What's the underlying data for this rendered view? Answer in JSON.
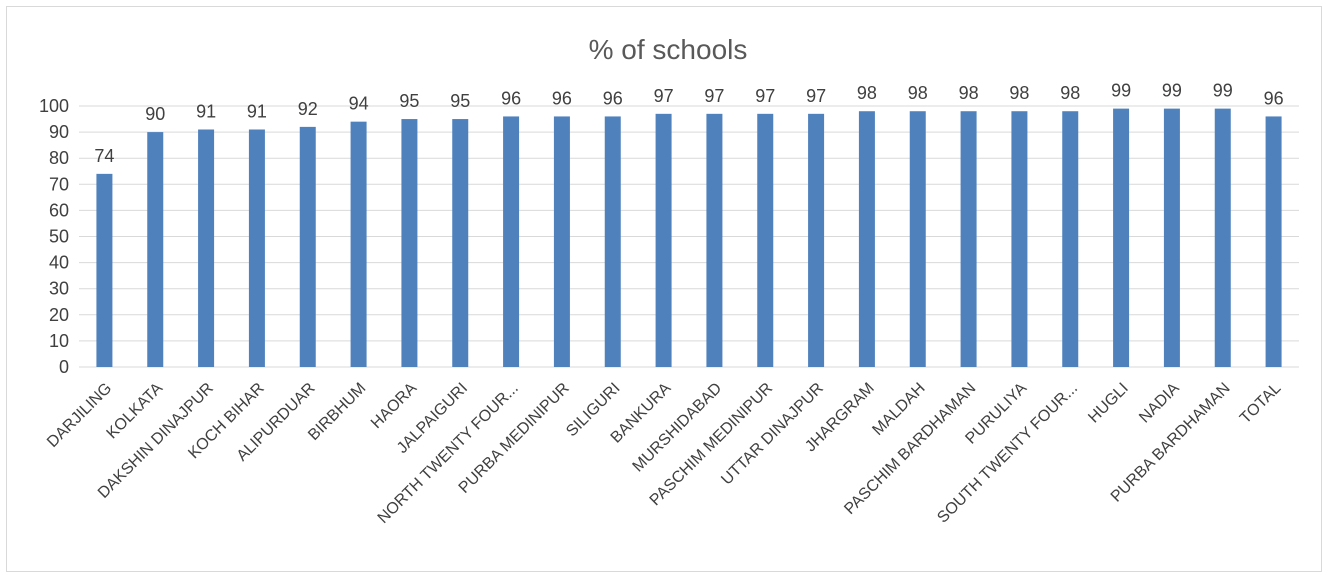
{
  "chart_data": {
    "type": "bar",
    "title": "% of schools",
    "categories": [
      "DARJILING",
      "KOLKATA",
      "DAKSHIN DINAJPUR",
      "KOCH BIHAR",
      "ALIPURDUAR",
      "BIRBHUM",
      "HAORA",
      "JALPAIGURI",
      "NORTH TWENTY FOUR...",
      "PURBA MEDINIPUR",
      "SILIGURI",
      "BANKURA",
      "MURSHIDABAD",
      "PASCHIM MEDINIPUR",
      "UTTAR DINAJPUR",
      "JHARGRAM",
      "MALDAH",
      "PASCHIM BARDHAMAN",
      "PURULIYA",
      "SOUTH TWENTY FOUR...",
      "HUGLI",
      "NADIA",
      "PURBA BARDHAMAN",
      "TOTAL"
    ],
    "values": [
      74,
      90,
      91,
      91,
      92,
      94,
      95,
      95,
      96,
      96,
      96,
      97,
      97,
      97,
      97,
      98,
      98,
      98,
      98,
      98,
      99,
      99,
      99,
      96
    ],
    "ylim": [
      0,
      100
    ],
    "yticks": [
      0,
      10,
      20,
      30,
      40,
      50,
      60,
      70,
      80,
      90,
      100
    ],
    "grid": true,
    "legend": "none",
    "bar_color": "#4f81bd",
    "grid_color": "#d9d9d9"
  }
}
